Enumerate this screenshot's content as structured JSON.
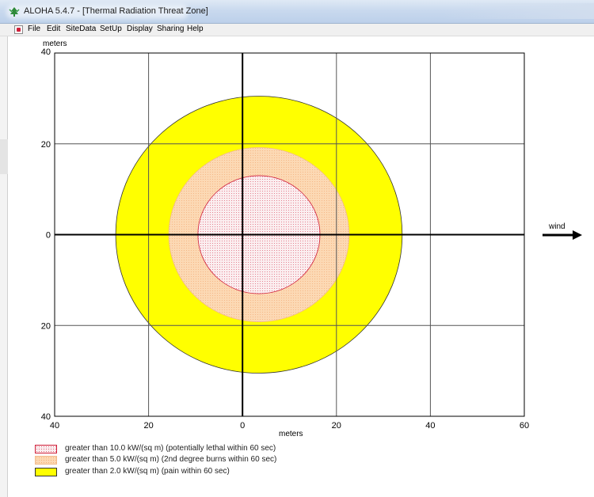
{
  "window": {
    "title": "ALOHA 5.4.7 - [Thermal Radiation Threat Zone]"
  },
  "menu": {
    "items": [
      "File",
      "Edit",
      "SiteData",
      "SetUp",
      "Display",
      "Sharing",
      "Help"
    ]
  },
  "colors": {
    "zone_red": "#d0203a",
    "zone_red_fill": "#fbeef0",
    "zone_orange": "#fcd9b4",
    "zone_yellow": "#ffff00",
    "axis": "#000000",
    "grid": "#555555"
  },
  "icons": [
    "aloha-app-icon",
    "document-icon",
    "wind-arrow-icon"
  ],
  "plot": {
    "wind_label": "wind",
    "wind_direction": "east"
  },
  "chart_data": {
    "type": "threat-zone",
    "xlabel": "meters",
    "ylabel": "meters",
    "xlim": [
      -40,
      60
    ],
    "ylim": [
      -40,
      40
    ],
    "x_ticks": [
      -40,
      -20,
      0,
      20,
      40,
      60
    ],
    "x_tick_labels": [
      "40",
      "20",
      "0",
      "20",
      "40",
      "60"
    ],
    "y_ticks": [
      40,
      20,
      0,
      -20,
      -40
    ],
    "y_tick_labels": [
      "40",
      "20",
      "0",
      "20",
      "40"
    ],
    "grid": true,
    "zones": [
      {
        "name": "greater than 2.0 kW/(sq m) (pain within 60 sec)",
        "center": [
          3.5,
          0
        ],
        "radius": 30.5,
        "fill": "#ffff00"
      },
      {
        "name": "greater than 5.0 kW/(sq m) (2nd degree burns within 60 sec)",
        "center": [
          3.5,
          0
        ],
        "radius": 19.2,
        "fill": "#fcd9b4"
      },
      {
        "name": "greater than 10.0 kW/(sq m) (potentially lethal within 60 sec)",
        "center": [
          3.5,
          0
        ],
        "radius": 13.0,
        "fill": "#fbeef0"
      }
    ]
  },
  "legend": {
    "items": [
      {
        "label": "greater than 10.0 kW/(sq m) (potentially lethal within 60 sec)",
        "swatch": "red-dotted"
      },
      {
        "label": "greater than 5.0 kW/(sq m) (2nd degree burns within 60 sec)",
        "swatch": "orange-dotted"
      },
      {
        "label": "greater than 2.0 kW/(sq m) (pain within 60 sec)",
        "swatch": "yellow"
      }
    ]
  }
}
